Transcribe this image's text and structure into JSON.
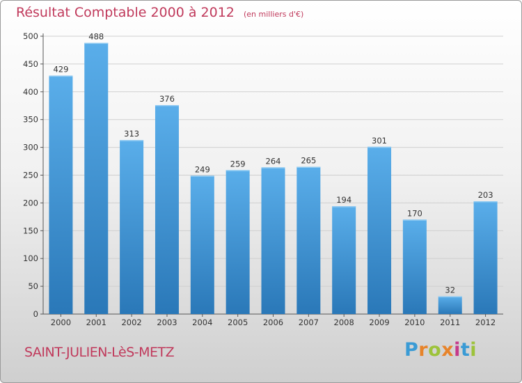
{
  "header": {
    "title": "Résultat Comptable 2000 à 2012",
    "unit": "(en milliers d'€)"
  },
  "footer": {
    "commune": "SAINT-JULIEN-LèS-METZ",
    "logo_text": "Proxiti",
    "logo_colors": [
      "#3a9bd5",
      "#e7842b",
      "#9dc33b",
      "#e7842b",
      "#c63a8a",
      "#3a9bd5",
      "#9dc33b"
    ]
  },
  "colors": {
    "accent": "#c0395b",
    "bar_top": "#5aaeea",
    "bar_bottom": "#2a78b8"
  },
  "chart_data": {
    "type": "bar",
    "title": "Résultat Comptable 2000 à 2012",
    "xlabel": "",
    "ylabel": "",
    "categories": [
      "2000",
      "2001",
      "2002",
      "2003",
      "2004",
      "2005",
      "2006",
      "2007",
      "2008",
      "2009",
      "2010",
      "2011",
      "2012"
    ],
    "values": [
      429,
      488,
      313,
      376,
      249,
      259,
      264,
      265,
      194,
      301,
      170,
      32,
      203
    ],
    "ylim": [
      0,
      500
    ],
    "yticks": [
      0,
      50,
      100,
      150,
      200,
      250,
      300,
      350,
      400,
      450,
      500
    ],
    "grid": true,
    "data_labels": true
  }
}
